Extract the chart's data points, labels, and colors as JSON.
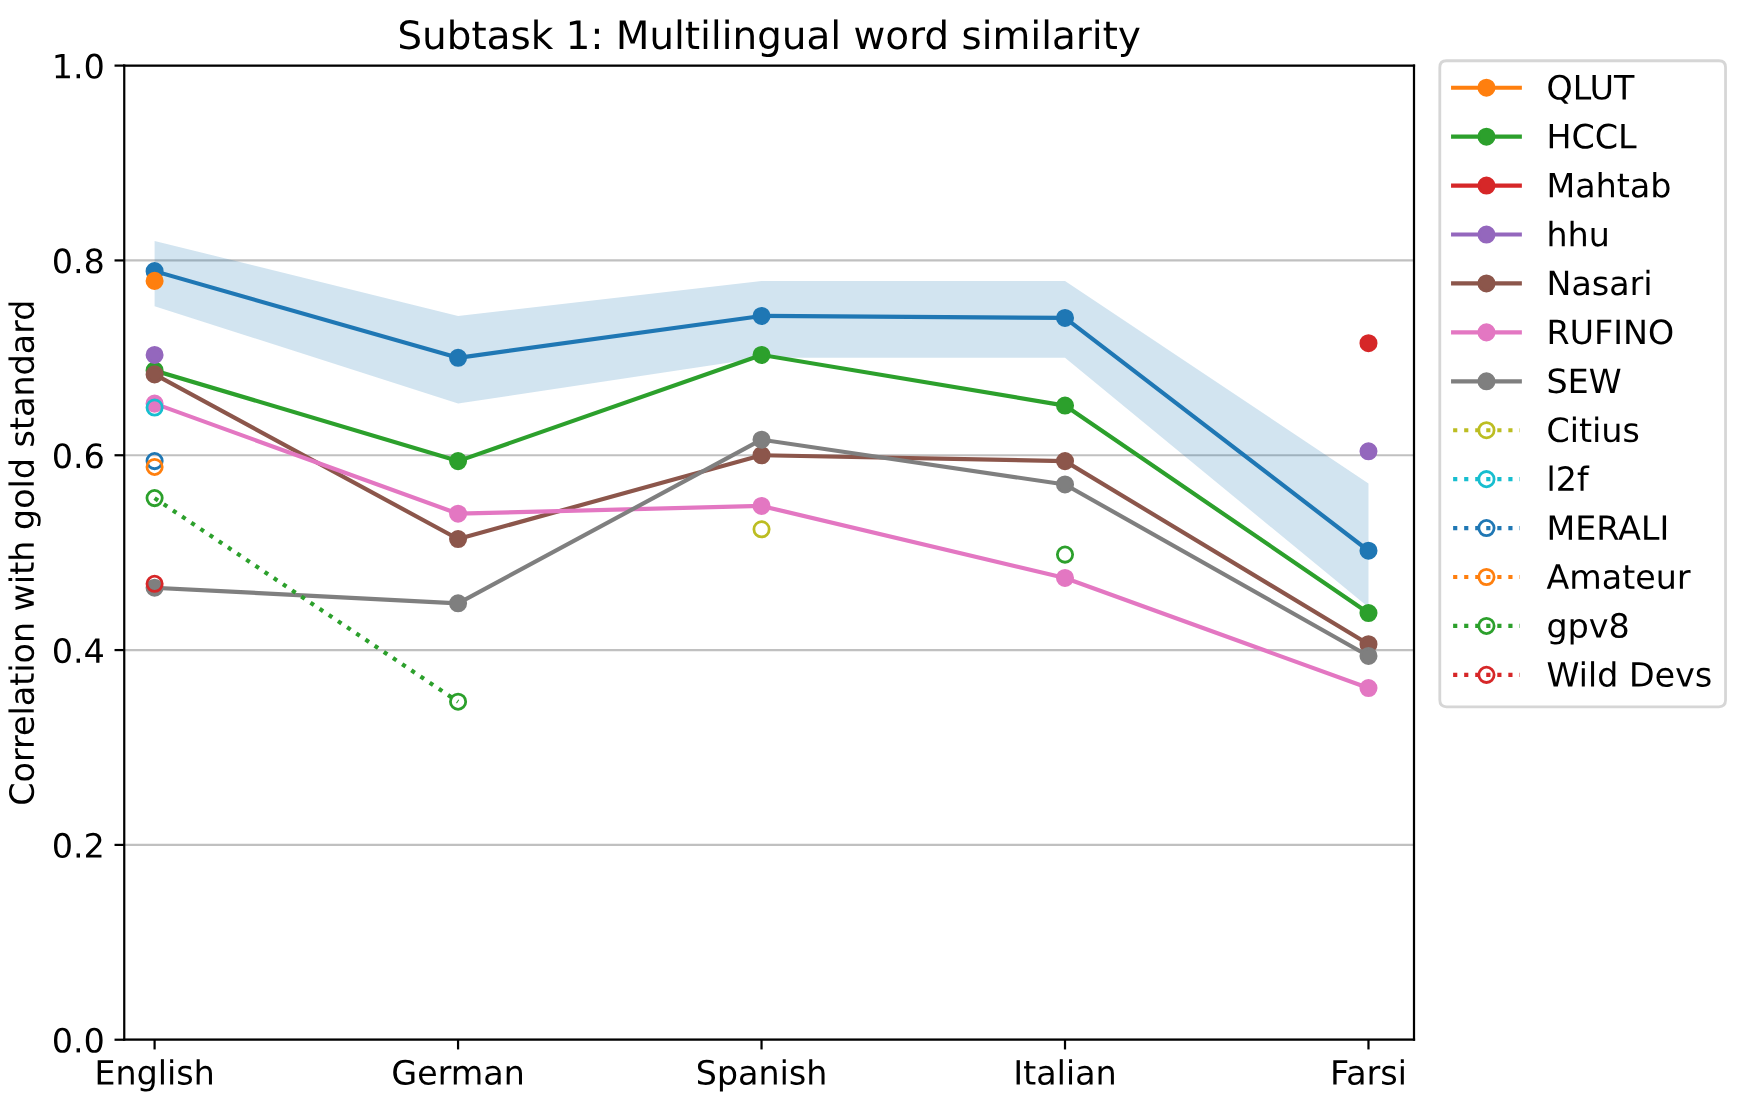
{
  "chart_data": {
    "type": "line",
    "title": "Subtask 1: Multilingual word similarity",
    "ylabel": "Correlation with gold standard",
    "categories": [
      "English",
      "German",
      "Spanish",
      "Italian",
      "Farsi"
    ],
    "ylim": [
      0,
      1.0
    ],
    "yticks": [
      {
        "value": 0,
        "label": "0.0"
      },
      0.2,
      0.4,
      0.6,
      0.8,
      {
        "value": 1.0,
        "label": "1.0"
      }
    ],
    "grid": "y",
    "legend": "top right",
    "marker": "circle",
    "series": [
      {
        "color": "#1f77b4",
        "line_style": "solid",
        "values": [
          0.789,
          0.7,
          0.743,
          0.741,
          0.502
        ],
        "lower": [
          0.753,
          0.653,
          0.7,
          0.7,
          0.444
        ],
        "upper": [
          0.82,
          0.743,
          0.779,
          0.779,
          0.571
        ]
      },
      {
        "name": "QLUT",
        "color": "#ff7f0e",
        "line_style": "solid",
        "values": [
          0.779,
          null,
          null,
          null,
          null
        ]
      },
      {
        "name": "HCCL",
        "color": "#2ca02c",
        "line_style": "solid",
        "values": [
          0.687,
          0.594,
          0.703,
          0.651,
          0.438
        ]
      },
      {
        "name": "Mahtab",
        "color": "#d62728",
        "line_style": "solid",
        "values": [
          null,
          null,
          null,
          null,
          0.715
        ]
      },
      {
        "name": "hhu",
        "type": "scatter",
        "color": "#9467bd",
        "line_style": "solid",
        "values": [
          0.703,
          null,
          null,
          null,
          0.604
        ]
      },
      {
        "name": "Nasari",
        "color": "#8c564b",
        "line_style": "solid",
        "values": [
          0.683,
          0.514,
          0.6,
          0.594,
          0.406
        ]
      },
      {
        "name": "RUFINO",
        "color": "#e377c2",
        "line_style": "solid",
        "values": [
          0.653,
          0.54,
          0.548,
          0.474,
          0.361
        ]
      },
      {
        "name": "SEW",
        "color": "#7f7f7f",
        "line_style": "solid",
        "values": [
          0.464,
          0.448,
          0.616,
          0.57,
          0.394
        ]
      },
      {
        "name": "Citius",
        "color": "#bcbd22",
        "line_style": "dotted",
        "values": [
          null,
          null,
          0.524,
          null,
          null
        ]
      },
      {
        "name": "l2f",
        "color": "#17becf",
        "line_style": "dotted",
        "values": [
          0.649,
          null,
          null,
          null,
          null
        ]
      },
      {
        "name": "MERALI",
        "color": "#1f77b4",
        "line_style": "dotted",
        "values": [
          0.594,
          null,
          null,
          null,
          null
        ]
      },
      {
        "name": "Amateur",
        "color": "#ff7f0e",
        "line_style": "dotted",
        "values": [
          0.588,
          null,
          null,
          null,
          null
        ]
      },
      {
        "name": "gpv8",
        "color": "#2ca02c",
        "line_style": "dotted",
        "values": [
          0.556,
          0.347,
          null,
          0.498,
          null
        ]
      },
      {
        "name": "Wild Devs",
        "color": "#d62728",
        "line_style": "dotted",
        "values": [
          0.468,
          null,
          null,
          null,
          null
        ]
      }
    ]
  }
}
